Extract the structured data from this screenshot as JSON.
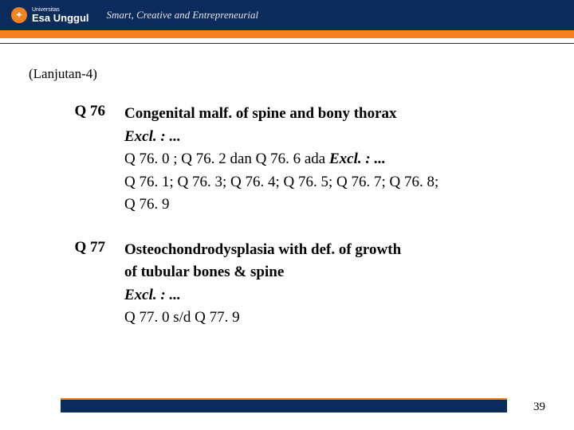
{
  "header": {
    "logo_top": "Universitas",
    "logo_main": "Esa Unggul",
    "tagline": "Smart, Creative and Entrepreneurial"
  },
  "subtitle": "(Lanjutan-4)",
  "entries": [
    {
      "code": "Q 76",
      "title": "Congenital malf. of  spine and bony thorax",
      "excl": "Excl. : ...",
      "line2a": "Q 76. 0 ; Q 76. 2  dan Q 76. 6  ada  ",
      "line2b": "Excl. : ...",
      "line3": "Q 76. 1; Q 76. 3; Q 76. 4; Q 76. 5; Q 76. 7; Q 76. 8;",
      "line4": "Q 76. 9"
    },
    {
      "code": "Q 77",
      "title": "Osteochondrodysplasia with def. of growth",
      "title2": "of tubular bones & spine",
      "excl": "Excl. : ...",
      "range": "Q 77. 0  s/d  Q 77. 9"
    }
  ],
  "page_number": "39"
}
